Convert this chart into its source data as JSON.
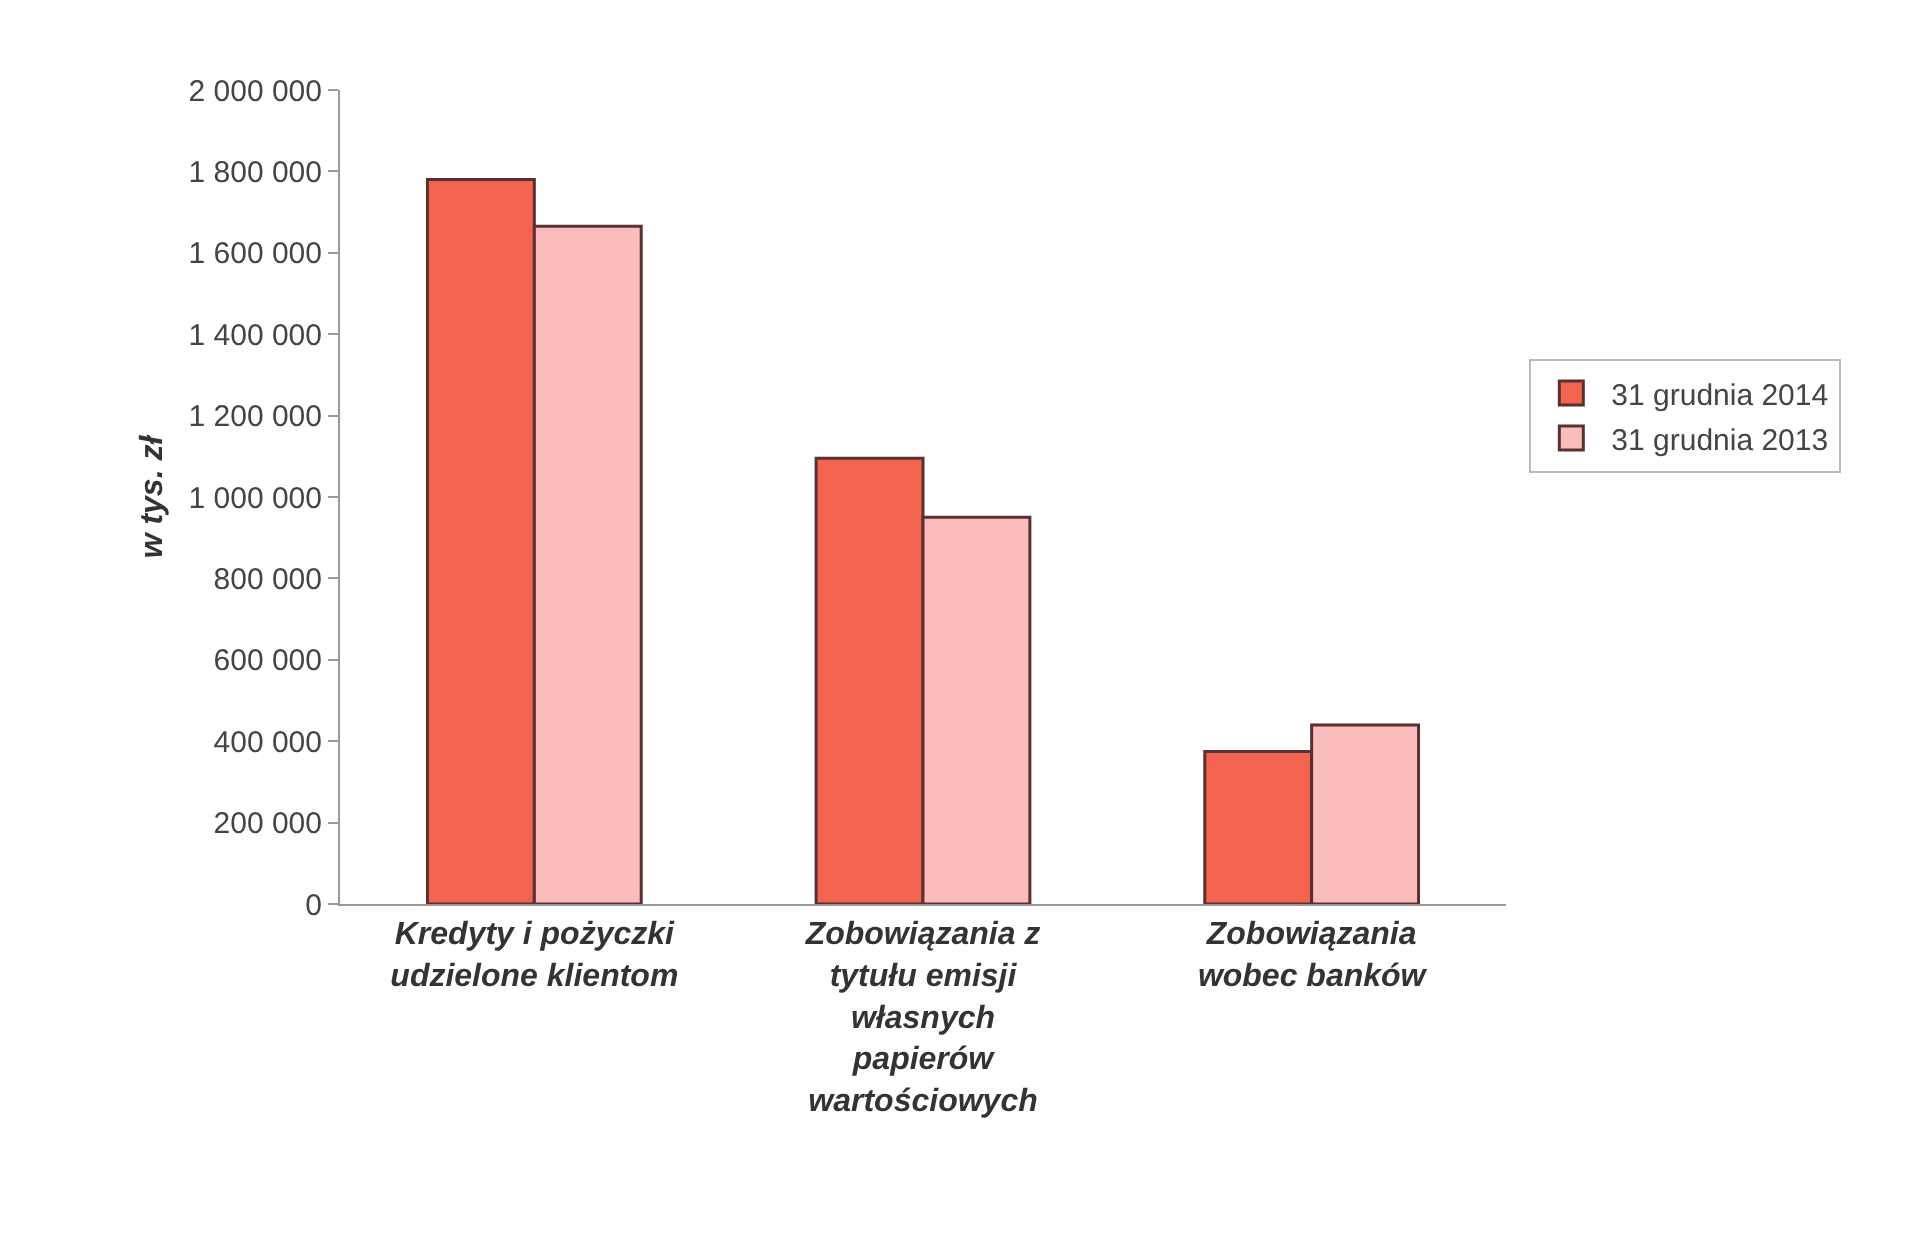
{
  "chart_data": {
    "type": "bar",
    "ylabel": "w tys. zł",
    "categories": [
      "Kredyty i pożyczki\nudzielone klientom",
      "Zobowiązania z\ntytułu emisji\nwłasnych\npapierów\nwartościowych",
      "Zobowiązania\nwobec banków"
    ],
    "series": [
      {
        "name": "31 grudnia 2014",
        "color": "#f26450",
        "values": [
          1780000,
          1095000,
          375000
        ]
      },
      {
        "name": "31 grudnia 2013",
        "color": "#fbbcbc",
        "values": [
          1665000,
          950000,
          440000
        ]
      }
    ],
    "ylim": [
      0,
      2000000
    ],
    "yticks": [
      {
        "value": 0,
        "label": "0"
      },
      {
        "value": 200000,
        "label": "200 000"
      },
      {
        "value": 400000,
        "label": "400 000"
      },
      {
        "value": 600000,
        "label": "600 000"
      },
      {
        "value": 800000,
        "label": "800 000"
      },
      {
        "value": 1000000,
        "label": "1 000 000"
      },
      {
        "value": 1200000,
        "label": "1 200 000"
      },
      {
        "value": 1400000,
        "label": "1 400 000"
      },
      {
        "value": 1600000,
        "label": "1 600 000"
      },
      {
        "value": 1800000,
        "label": "1 800 000"
      },
      {
        "value": 2000000,
        "label": "2 000 000"
      }
    ],
    "legend": "right"
  }
}
